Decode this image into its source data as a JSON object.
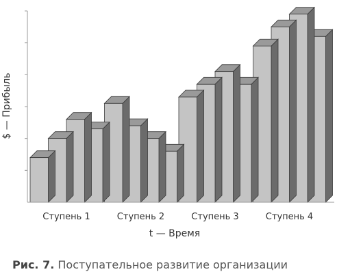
{
  "caption": {
    "prefix": "Рис. 7.",
    "text": "Поступательное развитие организации"
  },
  "colors": {
    "bar_front": "#c4c4c4",
    "bar_top": "#9a9a9a",
    "bar_side": "#6b6b6b",
    "bar_outline": "#3a3a3a",
    "axis": "#999999"
  },
  "chart_data": {
    "type": "bar",
    "title": "",
    "xlabel": "t — Время",
    "ylabel": "$ — Прибыль",
    "grid": false,
    "ylim": [
      0,
      6
    ],
    "categories": [
      "Ступень 1",
      "Ступень 2",
      "Ступень 3",
      "Ступень 4"
    ],
    "series": [
      {
        "values": [
          1.4,
          3.1,
          3.3,
          4.9
        ]
      },
      {
        "values": [
          2.0,
          2.4,
          3.7,
          5.5
        ]
      },
      {
        "values": [
          2.6,
          2.0,
          4.1,
          5.9
        ]
      },
      {
        "values": [
          2.3,
          1.6,
          3.7,
          5.2
        ]
      }
    ]
  }
}
